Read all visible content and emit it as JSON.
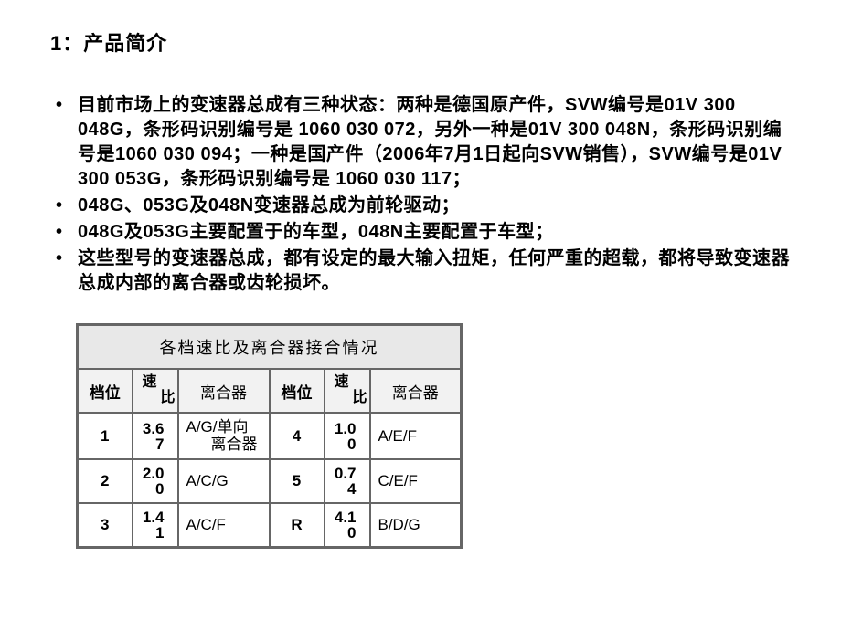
{
  "title": "1：产品简介",
  "bullets": [
    "目前市场上的变速器总成有三种状态：两种是德国原产件，SVW编号是01V 300 048G，条形码识别编号是 1060 030 072，另外一种是01V 300 048N，条形码识别编号是1060 030 094；一种是国产件（2006年7月1日起向SVW销售），SVW编号是01V 300 053G，条形码识别编号是 1060 030 117；",
    "048G、053G及048N变速器总成为前轮驱动；",
    "048G及053G主要配置于的车型，048N主要配置于车型；",
    "这些型号的变速器总成，都有设定的最大输入扭矩，任何严重的超载，都将导致变速器总成内部的离合器或齿轮损坏。"
  ],
  "table": {
    "caption": "各档速比及离合器接合情况",
    "headers": {
      "gear": "档位",
      "ratio_top": "速",
      "ratio_bot": "比",
      "clutch": "离合器"
    },
    "left_rows": [
      {
        "gear": "1",
        "ratio_top": "3.6",
        "ratio_bot": "7",
        "clutch_top": "A/G/单向",
        "clutch_bot": "离合器"
      },
      {
        "gear": "2",
        "ratio_top": "2.0",
        "ratio_bot": "0",
        "clutch": "A/C/G"
      },
      {
        "gear": "3",
        "ratio_top": "1.4",
        "ratio_bot": "1",
        "clutch": "A/C/F"
      }
    ],
    "right_rows": [
      {
        "gear": "4",
        "ratio_top": "1.0",
        "ratio_bot": "0",
        "clutch": "A/E/F"
      },
      {
        "gear": "5",
        "ratio_top": "0.7",
        "ratio_bot": "4",
        "clutch": "C/E/F"
      },
      {
        "gear": "R",
        "ratio_top": "4.1",
        "ratio_bot": "0",
        "clutch": "B/D/G"
      }
    ]
  },
  "styles": {
    "text_color": "#000000",
    "background": "#ffffff",
    "table_border": "#666666",
    "header_bg": "#e8e8e8",
    "subheader_bg": "#f2f2f2"
  }
}
